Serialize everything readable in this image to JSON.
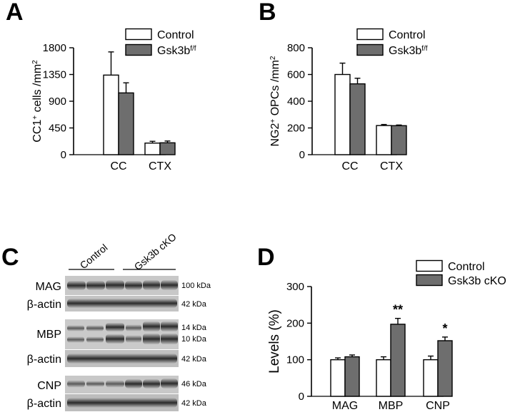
{
  "colors": {
    "control": "#ffffff",
    "treated": "#6e6e6e",
    "axis": "#000000"
  },
  "panels": {
    "A": "A",
    "B": "B",
    "C": "C",
    "D": "D"
  },
  "chart_data": [
    {
      "id": "A",
      "type": "bar",
      "panel_label": "A",
      "ylabel_main": "CC1",
      "ylabel_sup": "+",
      "ylabel_rest": " cells /mm",
      "ylabel_sup2": "2",
      "categories": [
        "CC",
        "CTX"
      ],
      "ylim": [
        0,
        1800
      ],
      "yticks": [
        "0",
        "450",
        "900",
        "1350",
        "1800"
      ],
      "series": [
        {
          "name": "Control",
          "values": [
            1340,
            195
          ],
          "errors": [
            390,
            30
          ]
        },
        {
          "name": "Gsk3b",
          "name_sup": "f/f",
          "values": [
            1040,
            200
          ],
          "errors": [
            170,
            30
          ]
        }
      ],
      "legend": "top-right"
    },
    {
      "id": "B",
      "type": "bar",
      "panel_label": "B",
      "ylabel_main": "NG2",
      "ylabel_sup": "+",
      "ylabel_rest": " OPCs /mm",
      "ylabel_sup2": "2",
      "categories": [
        "CC",
        "CTX"
      ],
      "ylim": [
        0,
        800
      ],
      "yticks": [
        "0",
        "200",
        "400",
        "600",
        "800"
      ],
      "series": [
        {
          "name": "Control",
          "values": [
            600,
            218
          ],
          "errors": [
            85,
            8
          ]
        },
        {
          "name": "Gsk3b",
          "name_sup": "f/f",
          "values": [
            530,
            217
          ],
          "errors": [
            42,
            5
          ]
        }
      ],
      "legend": "top-right"
    },
    {
      "id": "D",
      "type": "bar",
      "panel_label": "D",
      "ylabel": "Levels (%)",
      "categories": [
        "MAG",
        "MBP",
        "CNP"
      ],
      "ylim": [
        0,
        300
      ],
      "yticks": [
        "0",
        "100",
        "200",
        "300"
      ],
      "series": [
        {
          "name": "Control",
          "values": [
            100,
            100,
            100
          ],
          "errors": [
            5,
            8,
            10
          ]
        },
        {
          "name": "Gsk3b cKO",
          "values": [
            108,
            197,
            152
          ],
          "errors": [
            5,
            16,
            10
          ]
        }
      ],
      "annotations": [
        "",
        "**",
        "*"
      ],
      "legend": "top-right"
    }
  ],
  "blot": {
    "panel_label": "C",
    "groups": [
      "Control",
      "Gsk3b cKO"
    ],
    "rows": [
      {
        "label": "MAG",
        "kda": [
          "100 kDa"
        ]
      },
      {
        "label": "β-actin",
        "kda": [
          "42 kDa"
        ]
      },
      {
        "label": "MBP",
        "kda": [
          "14 kDa",
          "10 kDa"
        ]
      },
      {
        "label": "β-actin",
        "kda": [
          "42 kDa"
        ]
      },
      {
        "label": "CNP",
        "kda": [
          "46 kDa"
        ]
      },
      {
        "label": "β-actin",
        "kda": [
          "42 kDa"
        ]
      }
    ]
  }
}
